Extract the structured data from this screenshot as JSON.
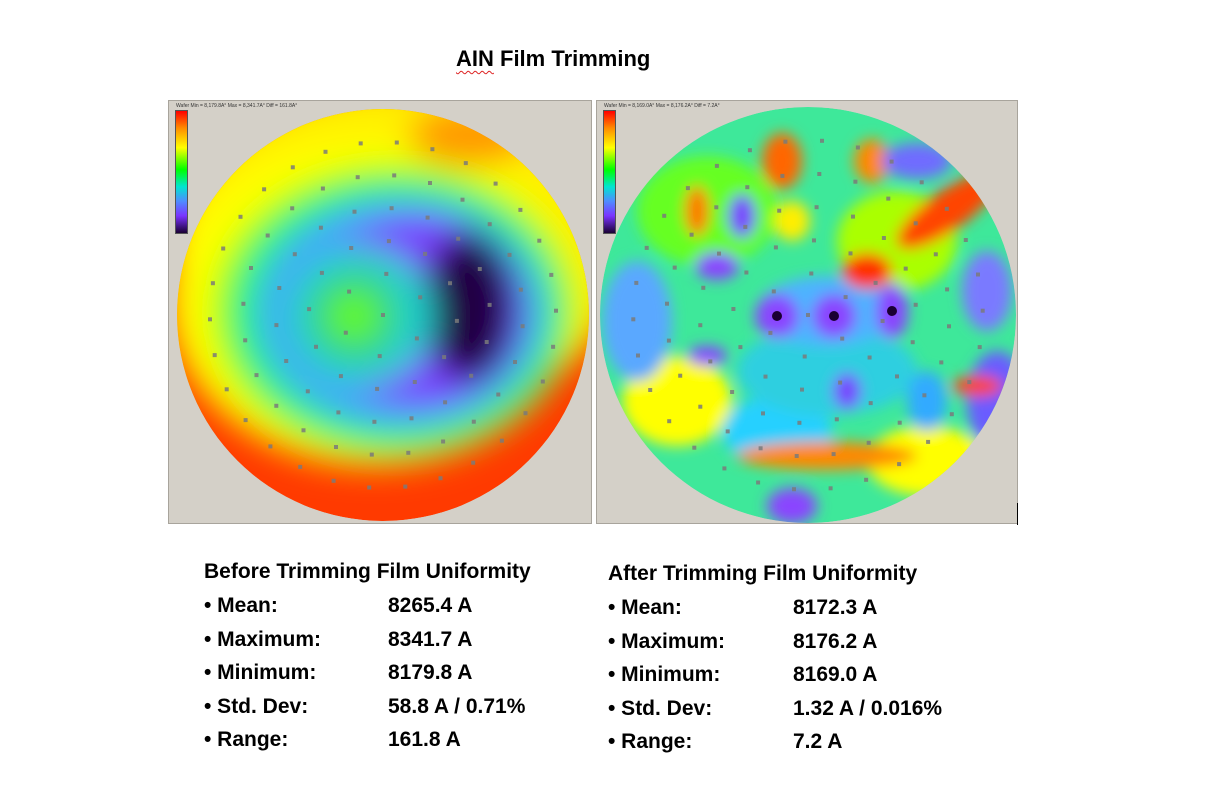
{
  "title": {
    "squiggly": "AIN",
    "rest": " Film Trimming"
  },
  "maps": [
    {
      "id": "before",
      "header": "Wafer Min = 8,179.8A° Max = 8,341.7A° Diff = 161.8A°"
    },
    {
      "id": "after",
      "header": "Wafer Min = 8,169.0A° Max = 8,176.2A° Diff = 7.2A°"
    }
  ],
  "colors": {
    "scale": [
      "#ff0000",
      "#ff8c00",
      "#ffff00",
      "#00ff00",
      "#00e5d0",
      "#4f8cff",
      "#7a33ff",
      "#1a0033"
    ],
    "panel_bg": "#d4d0c8",
    "measure_point": "#7a7a7a"
  },
  "stats_before": {
    "heading": "Before Trimming Film Uniformity",
    "rows": [
      {
        "label": "• Mean:",
        "value": "8265.4 A"
      },
      {
        "label": "• Maximum:",
        "value": "8341.7 A"
      },
      {
        "label": "• Minimum:",
        "value": "8179.8 A"
      },
      {
        "label": "• Std. Dev:",
        "value": "58.8 A / 0.71%"
      },
      {
        "label": "• Range:",
        "value": "161.8 A"
      }
    ]
  },
  "stats_after": {
    "heading": "After Trimming Film Uniformity",
    "rows": [
      {
        "label": "• Mean:",
        "value": "8172.3 A"
      },
      {
        "label": "• Maximum:",
        "value": "8176.2 A"
      },
      {
        "label": "• Minimum:",
        "value": "8169.0 A"
      },
      {
        "label": "• Std. Dev:",
        "value": "1.32 A / 0.016%"
      },
      {
        "label": "• Range:",
        "value": "7.2 A"
      }
    ]
  }
}
